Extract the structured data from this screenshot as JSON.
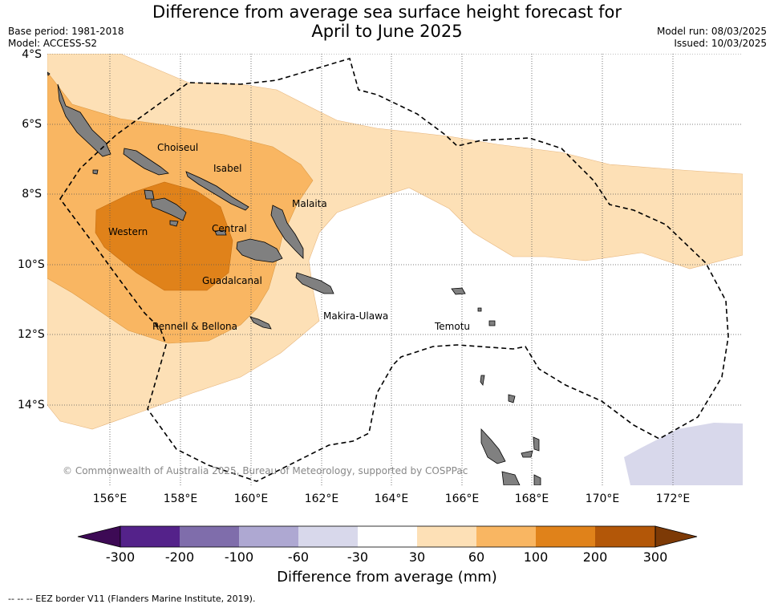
{
  "title": {
    "line1": "Difference from average sea surface height forecast for",
    "line2": "April to June 2025"
  },
  "meta": {
    "base_period": "Base period: 1981-2018",
    "model": "Model: ACCESS-S2",
    "model_run": "Model run: 08/03/2025",
    "issued": "Issued: 10/03/2025"
  },
  "axes": {
    "y_ticks": [
      "4°S",
      "6°S",
      "8°S",
      "10°S",
      "12°S",
      "14°S"
    ],
    "x_ticks": [
      "156°E",
      "158°E",
      "160°E",
      "162°E",
      "164°E",
      "166°E",
      "168°E",
      "170°E",
      "172°E"
    ]
  },
  "places": {
    "choiseul": "Choiseul",
    "isabel": "Isabel",
    "malaita": "Malaita",
    "western": "Western",
    "central": "Central",
    "guadalcanal": "Guadalcanal",
    "makira": "Makira-Ulawa",
    "rennell": "Rennell & Bellona",
    "temotu": "Temotu"
  },
  "copyright": "© Commonwealth of Australia 2025, Bureau of Meteorology, supported by COSPPac",
  "colorbar": {
    "title": "Difference from average (mm)",
    "labels": [
      "-300",
      "-200",
      "-100",
      "-60",
      "-30",
      "30",
      "60",
      "100",
      "200",
      "300"
    ],
    "colors": {
      "lt_300": "#3d0a55",
      "m300_m200": "#54228a",
      "m200_m100": "#7f6dab",
      "m100_m60": "#aea8d2",
      "m60_m30": "#d8d8eb",
      "m30_30": "#ffffff",
      "p30_60": "#fde0b6",
      "p60_100": "#f9b662",
      "p100_200": "#e0821a",
      "p200_300": "#b35708",
      "gt_300": "#7d3a06"
    }
  },
  "legend_eez": "--  --  -- EEZ border V11 (Flanders Marine Institute, 2019)."
}
